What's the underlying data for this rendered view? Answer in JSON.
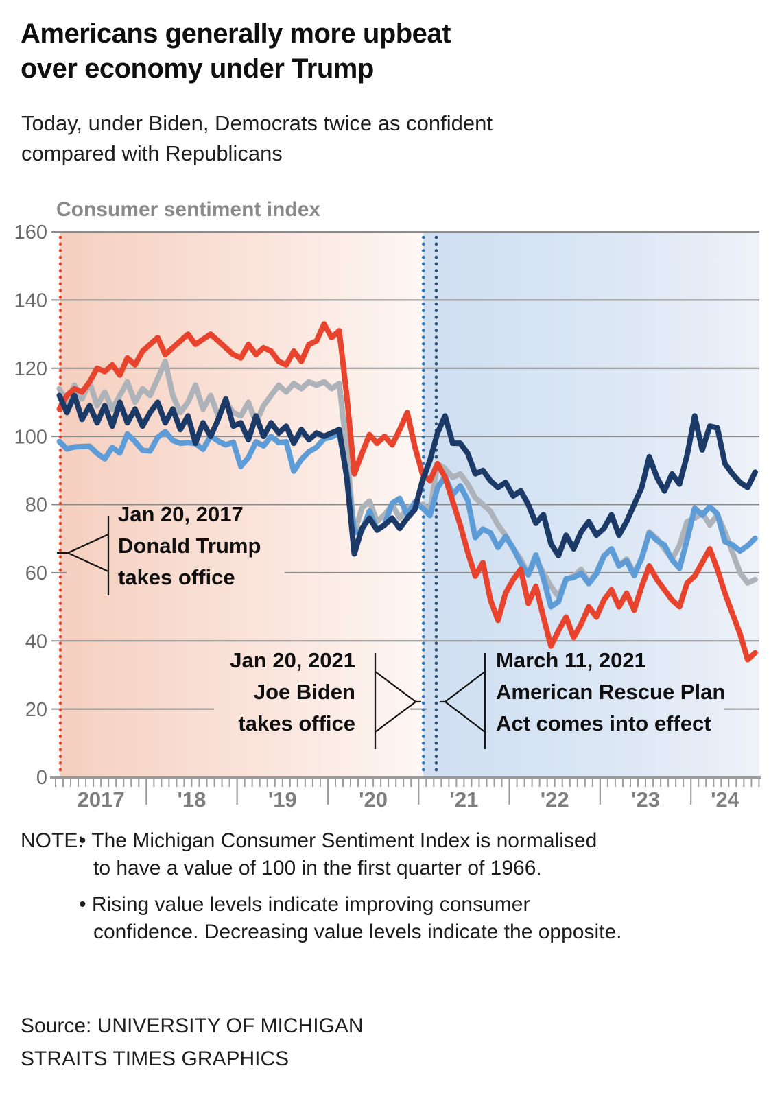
{
  "title": {
    "line1": "Americans generally more upbeat",
    "line2": "over economy under Trump"
  },
  "subtitle": {
    "line1": "Today, under Biden, Democrats twice as confident",
    "line2": "compared with Republicans"
  },
  "chart_data": {
    "type": "line",
    "title": "Consumer sentiment index",
    "x_start": "2017-01",
    "x_end": "2024-09",
    "x_interval": "monthly",
    "x_year_labels": [
      "2017",
      "'18",
      "'19",
      "'20",
      "'21",
      "'22",
      "'23",
      "'24"
    ],
    "ylim": [
      0,
      160
    ],
    "yticks": [
      0,
      20,
      40,
      60,
      80,
      100,
      120,
      140,
      160
    ],
    "grid": true,
    "legend": "none",
    "background": {
      "trump_era_stops": [
        [
          "0%",
          "#f5cfbf"
        ],
        [
          "25%",
          "#f7d9cc"
        ],
        [
          "55%",
          "#fae4db"
        ],
        [
          "85%",
          "#fcf0eb"
        ],
        [
          "100%",
          "#fdf7f5"
        ]
      ],
      "biden_era_stops": [
        [
          "0%",
          "#cfdff1"
        ],
        [
          "30%",
          "#d5e3f3"
        ],
        [
          "60%",
          "#dde8f5"
        ],
        [
          "85%",
          "#e7edf7"
        ],
        [
          "100%",
          "#eff3f9"
        ]
      ]
    },
    "series": [
      {
        "id": "gray-line",
        "color": "#adb3b9",
        "values": [
          114,
          110,
          115,
          111,
          116,
          109,
          113,
          108,
          112,
          116,
          110,
          114,
          112,
          117,
          122,
          112,
          107,
          110,
          115,
          108,
          112,
          106,
          110,
          107,
          106,
          110,
          104,
          109,
          112,
          115,
          113,
          115.5,
          114,
          116,
          115,
          116,
          114,
          115.5,
          96,
          71.5,
          79,
          81,
          75,
          77,
          80,
          76,
          79,
          80,
          80,
          78,
          92,
          90.5,
          88,
          89,
          86,
          82,
          80,
          78,
          74,
          71,
          67,
          64,
          59.5,
          64,
          60,
          56,
          53,
          58,
          59,
          61,
          57,
          60,
          65,
          67,
          62,
          64,
          60,
          64,
          72,
          70,
          67,
          64,
          68,
          75,
          76,
          77.5,
          74,
          77,
          72,
          66,
          60,
          57,
          58
        ]
      },
      {
        "id": "light-blue-line",
        "color": "#5d9cd6",
        "values": [
          98.5,
          96.3,
          96.9,
          97,
          97.1,
          95,
          93.4,
          96.8,
          95.1,
          100.7,
          98.5,
          95.9,
          95.7,
          99.7,
          101.4,
          98.8,
          98,
          98.2,
          97.9,
          96.2,
          100.1,
          98.6,
          97.5,
          98.3,
          91.2,
          93.8,
          98.4,
          97.2,
          100,
          98.2,
          98.4,
          89.8,
          93.2,
          95.5,
          96.8,
          99.3,
          99.8,
          101,
          89.1,
          71.8,
          72.3,
          78.1,
          72.5,
          74.1,
          80.4,
          81.8,
          76.9,
          80.7,
          79,
          76.8,
          84.9,
          88.3,
          82.9,
          85.5,
          81.2,
          70.3,
          72.8,
          71.7,
          67.4,
          70.6,
          67.2,
          62.8,
          59.4,
          65.2,
          58.4,
          50,
          51.5,
          58.2,
          58.6,
          59.9,
          56.8,
          59.7,
          64.9,
          67,
          62,
          63.5,
          59.2,
          64.4,
          71.6,
          69.5,
          68.1,
          63.8,
          61.3,
          69.7,
          79,
          76.9,
          79.4,
          77.2,
          69.1,
          68.2,
          66.4,
          67.9,
          70.1
        ]
      },
      {
        "id": "red-line",
        "color": "#e8432c",
        "values": [
          108,
          112,
          114,
          113,
          116,
          120,
          119,
          121,
          118,
          123,
          121,
          125,
          127,
          129,
          124,
          126,
          128,
          130,
          127,
          128.5,
          130,
          128,
          126,
          124,
          123,
          127,
          124,
          126,
          125,
          122,
          121,
          125,
          122,
          127,
          128,
          133,
          129,
          131,
          112,
          89,
          95,
          100.5,
          98,
          100,
          97.5,
          102,
          107,
          97,
          89,
          87,
          92,
          88,
          81,
          74,
          66,
          59,
          63,
          52,
          46,
          54,
          58,
          61,
          51,
          56,
          47,
          38.5,
          43,
          47,
          41,
          45,
          50,
          47,
          52,
          55,
          50,
          54,
          49,
          56,
          62,
          58,
          55,
          52,
          50,
          57,
          59,
          63,
          67,
          61,
          54,
          48,
          42,
          34.5,
          36.5
        ]
      },
      {
        "id": "navy-line",
        "color": "#1c3a68",
        "values": [
          112,
          107,
          112,
          105,
          109,
          104,
          109,
          103,
          110,
          104,
          108,
          103,
          107,
          110,
          104,
          108,
          102,
          106,
          98,
          104,
          100,
          105,
          111,
          103,
          104,
          99,
          106,
          100,
          104,
          101,
          103,
          98,
          102,
          99,
          101,
          100,
          101,
          102,
          88,
          65.5,
          73,
          76,
          72.5,
          74,
          76,
          73,
          76,
          78.5,
          87,
          93,
          101,
          106,
          98,
          98,
          95,
          89,
          90,
          87,
          85,
          86.5,
          82.5,
          84,
          80,
          74.5,
          77,
          68.5,
          65,
          71,
          67,
          72,
          75,
          71,
          73,
          77,
          71,
          75,
          80,
          85,
          94,
          88,
          84,
          89,
          86,
          94.5,
          106,
          96,
          103,
          102.5,
          92,
          89,
          86.5,
          85,
          89.5
        ]
      }
    ],
    "events": [
      {
        "date": "Jan 20, 2017",
        "months_from_jan_2017": 0.64,
        "line_color": "#e8432c",
        "label_lines": [
          "Jan 20, 2017",
          "Donald Trump",
          "takes office"
        ]
      },
      {
        "date": "Jan 20, 2021",
        "months_from_jan_2017": 48.64,
        "line_color": "#2e75b6",
        "label_lines": [
          "Jan 20, 2021",
          "Joe Biden",
          "takes office"
        ]
      },
      {
        "date": "March 11, 2021",
        "months_from_jan_2017": 50.33,
        "line_color": "#2d5078",
        "label_lines": [
          "March 11, 2021",
          "American Rescue Plan",
          "Act comes into effect"
        ]
      }
    ]
  },
  "note": {
    "label": "NOTE:",
    "bullets": [
      [
        "• The Michigan Consumer Sentiment Index is normalised",
        "to have a value of 100 in the first quarter of 1966."
      ],
      [
        "• Rising value levels indicate improving consumer",
        "confidence. Decreasing value levels indicate the opposite."
      ]
    ]
  },
  "source": {
    "line1": "Source: UNIVERSITY OF MICHIGAN",
    "line2": "STRAITS TIMES GRAPHICS"
  }
}
